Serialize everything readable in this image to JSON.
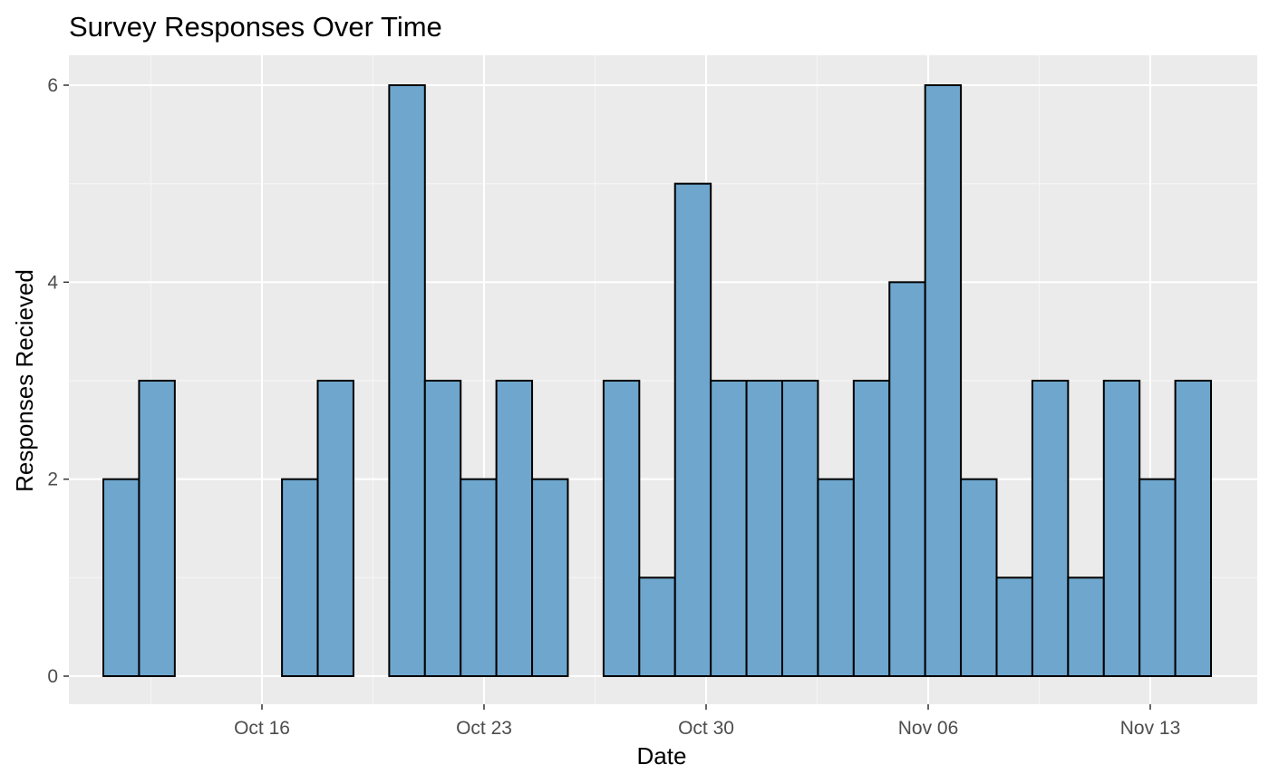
{
  "chart_data": {
    "type": "bar",
    "title": "Survey Responses Over Time",
    "xlabel": "Date",
    "ylabel": "Responses Recieved",
    "x_ticks": [
      {
        "date": "2023-10-16",
        "label": "Oct 16"
      },
      {
        "date": "2023-10-23",
        "label": "Oct 23"
      },
      {
        "date": "2023-10-30",
        "label": "Oct 30"
      },
      {
        "date": "2023-11-06",
        "label": "Nov 06"
      },
      {
        "date": "2023-11-13",
        "label": "Nov 13"
      }
    ],
    "y_ticks": [
      0,
      2,
      4,
      6
    ],
    "ylim": [
      0,
      6
    ],
    "xlim": [
      "2023-10-10",
      "2023-11-16"
    ],
    "bins": [
      {
        "start": "2023-10-11",
        "value": 2
      },
      {
        "start": "2023-10-12",
        "value": 3
      },
      {
        "start": "2023-10-13",
        "value": 0
      },
      {
        "start": "2023-10-14",
        "value": 0
      },
      {
        "start": "2023-10-15",
        "value": 0
      },
      {
        "start": "2023-10-16",
        "value": 2
      },
      {
        "start": "2023-10-17",
        "value": 3
      },
      {
        "start": "2023-10-18",
        "value": 0
      },
      {
        "start": "2023-10-19",
        "value": 6
      },
      {
        "start": "2023-10-20",
        "value": 3
      },
      {
        "start": "2023-10-21",
        "value": 2
      },
      {
        "start": "2023-10-22",
        "value": 3
      },
      {
        "start": "2023-10-23",
        "value": 2
      },
      {
        "start": "2023-10-24",
        "value": 0
      },
      {
        "start": "2023-10-25",
        "value": 3
      },
      {
        "start": "2023-10-26",
        "value": 1
      },
      {
        "start": "2023-10-27",
        "value": 5
      },
      {
        "start": "2023-10-28",
        "value": 3
      },
      {
        "start": "2023-10-29",
        "value": 3
      },
      {
        "start": "2023-10-30",
        "value": 3
      },
      {
        "start": "2023-10-31",
        "value": 2
      },
      {
        "start": "2023-11-01",
        "value": 3
      },
      {
        "start": "2023-11-02",
        "value": 4
      },
      {
        "start": "2023-11-03",
        "value": 6
      },
      {
        "start": "2023-11-04",
        "value": 2
      },
      {
        "start": "2023-11-05",
        "value": 1
      },
      {
        "start": "2023-11-06",
        "value": 3
      },
      {
        "start": "2023-11-07",
        "value": 1
      },
      {
        "start": "2023-11-08",
        "value": 3
      },
      {
        "start": "2023-11-09",
        "value": 2
      },
      {
        "start": "2023-11-10",
        "value": 3
      }
    ],
    "bin_days": 1.1263,
    "grid": true,
    "colors": {
      "panel_background": "#ebebeb",
      "grid_major": "#ffffff",
      "grid_minor": "#f5f5f5",
      "bar_fill": "#6ea6cd",
      "bar_outline": "#000000"
    }
  }
}
